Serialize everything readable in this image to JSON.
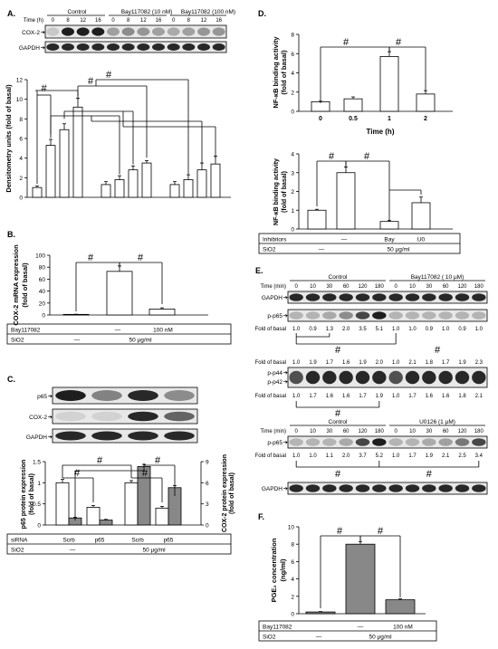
{
  "panels": {
    "A": {
      "label": "A.",
      "groups": [
        "Control",
        "Bay117082 (10 nM)",
        "Bay117082 (100 nM)"
      ],
      "time_label": "Time (h)",
      "times": [
        "0",
        "8",
        "12",
        "16"
      ],
      "bands": [
        "COX-2",
        "GAPDH"
      ],
      "chart_data": {
        "type": "bar",
        "ylabel": "Densitometry units (fold of basal)",
        "values": [
          1.0,
          5.3,
          6.9,
          9.2,
          1.3,
          1.8,
          2.8,
          3.5,
          1.3,
          1.8,
          2.8,
          3.4
        ],
        "errors": [
          0.15,
          0.6,
          0.6,
          0.9,
          0.3,
          0.4,
          0.4,
          0.25,
          0.3,
          0.5,
          0.7,
          0.8
        ],
        "ylim": [
          0,
          12
        ],
        "significance": "#"
      }
    },
    "B": {
      "label": "B.",
      "chart_data": {
        "type": "bar",
        "ylabel": "COX-2 mRNA expression (fold of basal)",
        "values": [
          1.0,
          73,
          10
        ],
        "errors": [
          0.3,
          9,
          2
        ],
        "ylim": [
          0,
          100
        ],
        "significance": "#"
      },
      "table": {
        "rows": [
          {
            "label": "Bay117082",
            "cells": [
              "—",
              "100 nM"
            ]
          },
          {
            "label": "SiO2",
            "cells": [
              "—",
              "50 µg/ml"
            ]
          }
        ]
      }
    },
    "C": {
      "label": "C.",
      "bands": [
        "p65",
        "COX-2",
        "GAPDH"
      ],
      "chart_data": {
        "type": "bar",
        "ylabel_left": "p65 protein expression (fold of basal)",
        "ylabel_right": "COX-2 protein expression (fold of basal)",
        "categories": [
          "Scrb",
          "p65",
          "Scrb",
          "p65"
        ],
        "series": [
          {
            "values": [
              1.0,
              0.42,
              1.0,
              0.4
            ],
            "errors": [
              0.08,
              0.04,
              0.05,
              0.04
            ]
          },
          {
            "values": [
              1.0,
              0.7,
              8.3,
              5.3
            ],
            "errors": [
              0.1,
              0.1,
              0.3,
              0.3
            ]
          }
        ],
        "ylim_left": [
          0,
          1.5
        ],
        "ylim_right": [
          0,
          9
        ],
        "yticks_right": [
          0,
          3,
          6,
          9
        ],
        "significance": "#"
      },
      "table": {
        "rows": [
          {
            "label": "siRNA",
            "cells": [
              "Scrb",
              "p65",
              "Scrb",
              "p65"
            ]
          },
          {
            "label": "SiO2",
            "cells": [
              "—",
              "50 µg/ml"
            ]
          }
        ]
      }
    },
    "D": {
      "label": "D.",
      "chart_top": {
        "type": "bar",
        "ylabel": "NF-κB binding activity (fold of basal)",
        "xlabel": "Time (h)",
        "categories": [
          "0",
          "0.5",
          "1",
          "2"
        ],
        "values": [
          1.0,
          1.3,
          5.7,
          1.8
        ],
        "errors": [
          0.05,
          0.2,
          0.5,
          0.35
        ],
        "ylim": [
          0,
          8
        ],
        "significance": "#"
      },
      "chart_bottom": {
        "type": "bar",
        "ylabel": "NF-κB binding activity (fold of basal)",
        "values": [
          1.0,
          3.0,
          0.4,
          1.4
        ],
        "errors": [
          0.05,
          0.3,
          0.05,
          0.3
        ],
        "ylim": [
          0,
          4
        ],
        "significance": "#"
      },
      "table": {
        "rows": [
          {
            "label": "Inhibitors",
            "cells": [
              "—",
              "Bay",
              "U0"
            ]
          },
          {
            "label": "SiO2",
            "cells": [
              "—",
              "50 µg/ml"
            ]
          }
        ]
      }
    },
    "E": {
      "label": "E.",
      "groups_1": [
        "Control",
        "Bay117082 ( 10 µM)"
      ],
      "time_label": "Time (min)",
      "times": [
        "0",
        "10",
        "30",
        "60",
        "120",
        "180"
      ],
      "bands_1": [
        "GAPDH",
        "p-p65"
      ],
      "fold_label": "Fold of basal",
      "fold_pp65": [
        "1.0",
        "0.9",
        "1.3",
        "2.0",
        "3.5",
        "5.1",
        "1.0",
        "1.0",
        "0.9",
        "1.0",
        "0.9",
        "1.0"
      ],
      "fold_pp44": [
        "1.0",
        "1.9",
        "1.7",
        "1.6",
        "1.9",
        "2.0",
        "1.0",
        "2.1",
        "1.8",
        "1.7",
        "1.9",
        "2.3"
      ],
      "bands_2": [
        "p-p44",
        "p-p42"
      ],
      "fold_pp42": [
        "1.0",
        "1.7",
        "1.6",
        "1.6",
        "1.7",
        "1.9",
        "1.0",
        "1.7",
        "1.6",
        "1.6",
        "1.8",
        "2.1"
      ],
      "groups_3": [
        "Control",
        "U0126 (1 µM)"
      ],
      "bands_3": [
        "p-p65",
        "GAPDH"
      ],
      "fold_pp65_u0": [
        "1.0",
        "1.0",
        "1.1",
        "2.0",
        "3.7",
        "5.2",
        "1.0",
        "1.7",
        "1.9",
        "2.1",
        "2.5",
        "3.4"
      ],
      "significance": "#"
    },
    "F": {
      "label": "F.",
      "chart_data": {
        "type": "bar",
        "ylabel": "PGE2 concentration (ng/ml)",
        "values": [
          0.2,
          8.0,
          1.6
        ],
        "errors": [
          0.05,
          0.3,
          0.1
        ],
        "ylim": [
          0,
          10
        ],
        "yticks": [
          0,
          2,
          4,
          6,
          8,
          10
        ],
        "significance": "#"
      },
      "table": {
        "rows": [
          {
            "label": "Bay117082",
            "cells": [
              "—",
              "100 nM"
            ]
          },
          {
            "label": "SiO2",
            "cells": [
              "—",
              "50 µg/ml"
            ]
          }
        ]
      }
    }
  }
}
